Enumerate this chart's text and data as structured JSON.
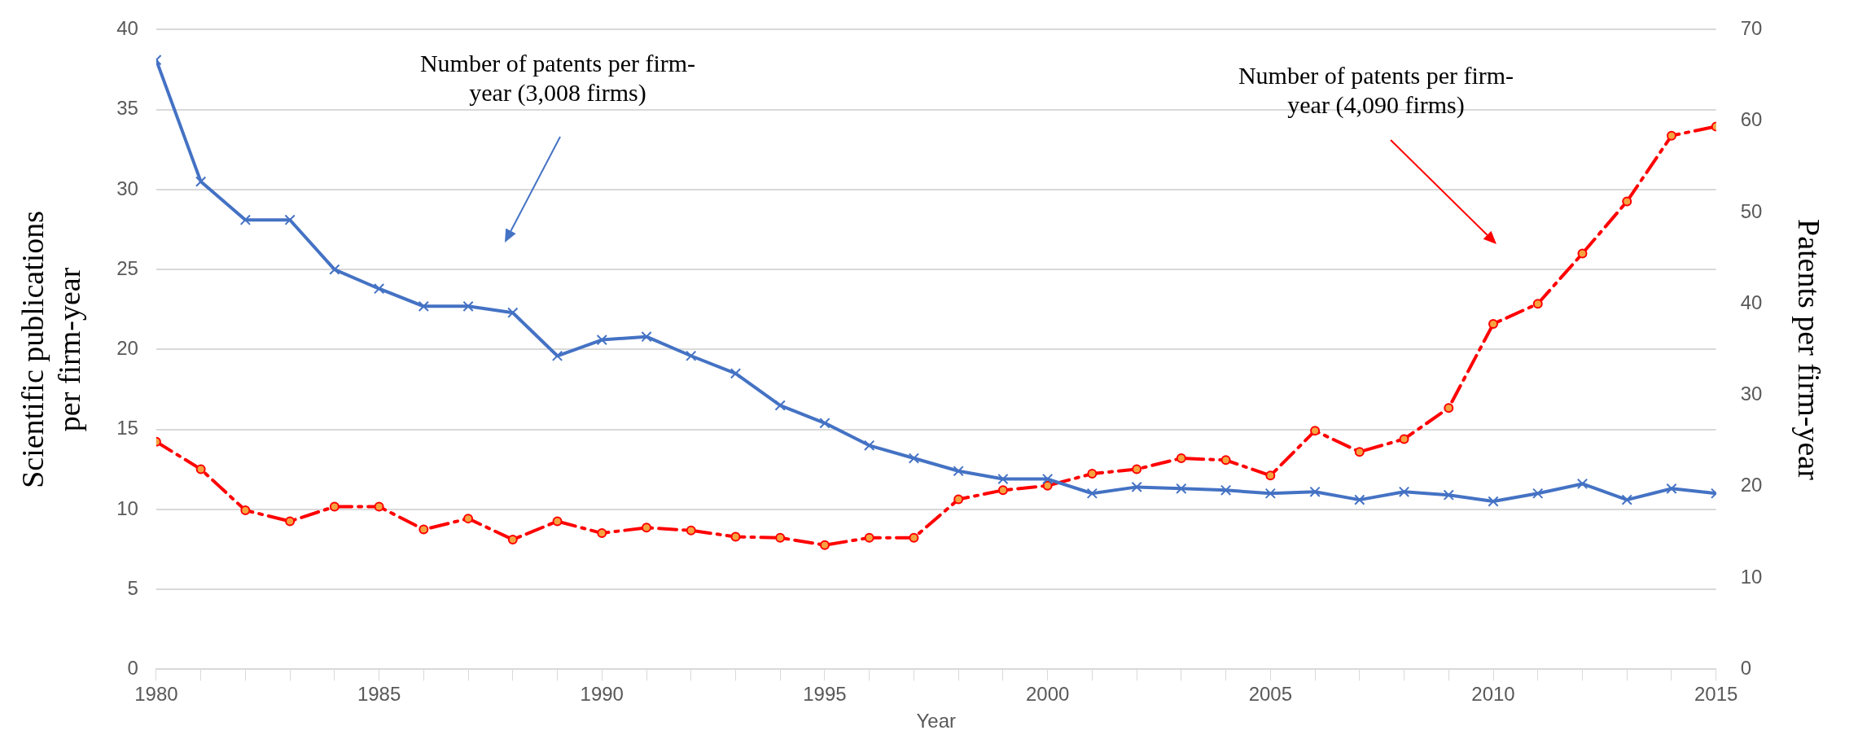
{
  "chart_data": {
    "type": "line",
    "xlabel": "Year",
    "ylabel": "Scientific publications per firm-year",
    "y2label": "Patents per firm-year",
    "x": [
      1980,
      1981,
      1982,
      1983,
      1984,
      1985,
      1986,
      1987,
      1988,
      1989,
      1990,
      1991,
      1992,
      1993,
      1994,
      1995,
      1996,
      1997,
      1998,
      1999,
      2000,
      2001,
      2002,
      2003,
      2004,
      2005,
      2006,
      2007,
      2008,
      2009,
      2010,
      2011,
      2012,
      2013,
      2014,
      2015
    ],
    "series": [
      {
        "color": "#4472c4",
        "marker": "cross",
        "line_style": "solid",
        "values": [
          38.1,
          30.5,
          28.1,
          28.1,
          25.0,
          23.8,
          22.7,
          22.7,
          22.3,
          19.6,
          20.6,
          20.8,
          19.6,
          18.5,
          16.5,
          15.4,
          14.0,
          13.2,
          12.4,
          11.9,
          11.9,
          11.0,
          11.4,
          11.3,
          11.2,
          11.0,
          11.1,
          10.6,
          11.1,
          10.9,
          10.5,
          11.0,
          11.6,
          10.6,
          11.3,
          11.0
        ]
      },
      {
        "color": "#ff0000",
        "marker": "circle",
        "line_style": "dashed",
        "axis": "y2",
        "values": [
          24.9,
          21.9,
          17.4,
          16.2,
          17.8,
          17.8,
          15.3,
          16.5,
          14.2,
          16.2,
          14.9,
          15.5,
          15.2,
          14.5,
          14.4,
          13.6,
          14.4,
          14.4,
          18.6,
          19.6,
          20.1,
          21.4,
          21.9,
          23.1,
          22.9,
          21.2,
          26.1,
          23.8,
          25.2,
          28.6,
          37.8,
          40.0,
          45.5,
          51.2,
          58.4,
          59.4
        ]
      }
    ],
    "xlim": [
      1980,
      2015
    ],
    "xticks": [
      1980,
      {
        "value": 1981,
        "label": null
      },
      {
        "value": 1982,
        "label": null
      },
      {
        "value": 1983,
        "label": null
      },
      {
        "value": 1984,
        "label": null
      },
      1985,
      {
        "value": 1986,
        "label": null
      },
      {
        "value": 1987,
        "label": null
      },
      {
        "value": 1988,
        "label": null
      },
      {
        "value": 1989,
        "label": null
      },
      1990,
      {
        "value": 1991,
        "label": null
      },
      {
        "value": 1992,
        "label": null
      },
      {
        "value": 1993,
        "label": null
      },
      {
        "value": 1994,
        "label": null
      },
      1995,
      {
        "value": 1996,
        "label": null
      },
      {
        "value": 1997,
        "label": null
      },
      {
        "value": 1998,
        "label": null
      },
      {
        "value": 1999,
        "label": null
      },
      2000,
      {
        "value": 2001,
        "label": null
      },
      {
        "value": 2002,
        "label": null
      },
      {
        "value": 2003,
        "label": null
      },
      {
        "value": 2004,
        "label": null
      },
      2005,
      {
        "value": 2006,
        "label": null
      },
      {
        "value": 2007,
        "label": null
      },
      {
        "value": 2008,
        "label": null
      },
      {
        "value": 2009,
        "label": null
      },
      2010,
      {
        "value": 2011,
        "label": null
      },
      {
        "value": 2012,
        "label": null
      },
      {
        "value": 2013,
        "label": null
      },
      {
        "value": 2014,
        "label": null
      },
      2015
    ],
    "ylim": [
      0,
      40
    ],
    "yticks": [
      0,
      5,
      10,
      15,
      20,
      25,
      30,
      35,
      40
    ],
    "y2lim": [
      0,
      70
    ],
    "y2ticks": [
      0,
      10,
      20,
      30,
      40,
      50,
      60,
      70
    ],
    "grid": "y",
    "legend": false,
    "annotations": [
      "Number of patents per firm-year (3,008 firms)",
      "Number of patents per firm-year (4,090 firms)"
    ]
  }
}
